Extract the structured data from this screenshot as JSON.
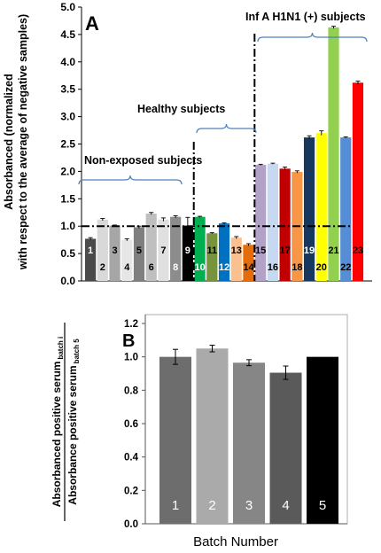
{
  "chart_data": [
    {
      "panel": "A",
      "type": "bar",
      "ylabel_line1": "Absorbanced (normalized",
      "ylabel_line2": "with respect to the average of negative samples)",
      "ylim": [
        0,
        5
      ],
      "yticks": [
        "0.0",
        "0.5",
        "1.0",
        "1.5",
        "2.0",
        "2.5",
        "3.0",
        "3.5",
        "4.0",
        "4.5",
        "5.0"
      ],
      "threshold": 1.0,
      "groups": [
        {
          "label": "Non-exposed subjects",
          "from": 1,
          "to": 9
        },
        {
          "label": "Healthy subjects",
          "from": 10,
          "to": 14
        },
        {
          "label": "Inf A H1N1 (+) subjects",
          "from": 15,
          "to": 23
        }
      ],
      "bars": [
        {
          "n": "1",
          "value": 0.77,
          "err": 0.02,
          "color": "#4a4a4a",
          "label_color": "#ffffff",
          "label_pos": "high"
        },
        {
          "n": "2",
          "value": 1.12,
          "err": 0.02,
          "color": "#d9d9d9",
          "label_color": "#000000",
          "label_pos": "low"
        },
        {
          "n": "3",
          "value": 1.01,
          "err": 0.01,
          "color": "#a6a6a6",
          "label_color": "#000000",
          "label_pos": "high"
        },
        {
          "n": "4",
          "value": 0.75,
          "err": 0.02,
          "color": "#e6e6e6",
          "label_color": "#000000",
          "label_pos": "low"
        },
        {
          "n": "5",
          "value": 0.98,
          "err": 0.02,
          "color": "#7f7f7f",
          "label_color": "#000000",
          "label_pos": "high"
        },
        {
          "n": "6",
          "value": 1.23,
          "err": 0.02,
          "color": "#bfbfbf",
          "label_color": "#000000",
          "label_pos": "low"
        },
        {
          "n": "7",
          "value": 1.12,
          "err": 0.03,
          "color": "#e0e0e0",
          "label_color": "#000000",
          "label_pos": "high"
        },
        {
          "n": "8",
          "value": 1.17,
          "err": 0.02,
          "color": "#8c8c8c",
          "label_color": "#ffffff",
          "label_pos": "low"
        },
        {
          "n": "9",
          "value": 1.01,
          "err": 0.15,
          "color": "#000000",
          "label_color": "#ffffff",
          "label_pos": "high"
        },
        {
          "n": "10",
          "value": 1.17,
          "err": 0.01,
          "color": "#00b050",
          "label_color": "#ffffff",
          "label_pos": "low"
        },
        {
          "n": "11",
          "value": 0.87,
          "err": 0.01,
          "color": "#77933c",
          "label_color": "#000000",
          "label_pos": "high"
        },
        {
          "n": "12",
          "value": 1.05,
          "err": 0.01,
          "color": "#0070c0",
          "label_color": "#ffffff",
          "label_pos": "low"
        },
        {
          "n": "13",
          "value": 0.79,
          "err": 0.02,
          "color": "#fac090",
          "label_color": "#000000",
          "label_pos": "high"
        },
        {
          "n": "14",
          "value": 0.66,
          "err": 0.02,
          "color": "#e46c0a",
          "label_color": "#000000",
          "label_pos": "low"
        },
        {
          "n": "15",
          "value": 2.12,
          "err": 0.01,
          "color": "#b3a2c7",
          "label_color": "#000000",
          "label_pos": "high"
        },
        {
          "n": "16",
          "value": 2.14,
          "err": 0.01,
          "color": "#c6d9f1",
          "label_color": "#000000",
          "label_pos": "low"
        },
        {
          "n": "17",
          "value": 2.05,
          "err": 0.03,
          "color": "#c00000",
          "label_color": "#000000",
          "label_pos": "high"
        },
        {
          "n": "18",
          "value": 1.99,
          "err": 0.02,
          "color": "#f79646",
          "label_color": "#000000",
          "label_pos": "low"
        },
        {
          "n": "19",
          "value": 2.62,
          "err": 0.03,
          "color": "#17375e",
          "label_color": "#ffffff",
          "label_pos": "high"
        },
        {
          "n": "20",
          "value": 2.7,
          "err": 0.04,
          "color": "#ffff00",
          "label_color": "#000000",
          "label_pos": "low"
        },
        {
          "n": "21",
          "value": 4.63,
          "err": 0.02,
          "color": "#92d050",
          "label_color": "#000000",
          "label_pos": "high"
        },
        {
          "n": "22",
          "value": 2.62,
          "err": 0.01,
          "color": "#558ed5",
          "label_color": "#000000",
          "label_pos": "low"
        },
        {
          "n": "23",
          "value": 3.62,
          "err": 0.03,
          "color": "#ff0000",
          "label_color": "#000000",
          "label_pos": "high"
        }
      ]
    },
    {
      "panel": "B",
      "type": "bar",
      "ylabel_numerator": "Absorbanced positive serum",
      "ylabel_numerator_sub": "batch i",
      "ylabel_denominator": "Absorbance positive serum",
      "ylabel_denominator_sub": "batch 5",
      "xlabel": "Batch Number",
      "ylim": [
        0,
        1.2
      ],
      "yticks": [
        "0.0",
        "0.2",
        "0.4",
        "0.6",
        "0.8",
        "1.0",
        "1.2"
      ],
      "bars": [
        {
          "n": "1",
          "value": 1.0,
          "err": 0.045,
          "color": "#6d6d6d"
        },
        {
          "n": "2",
          "value": 1.05,
          "err": 0.02,
          "color": "#aaaaaa"
        },
        {
          "n": "3",
          "value": 0.965,
          "err": 0.018,
          "color": "#868686"
        },
        {
          "n": "4",
          "value": 0.905,
          "err": 0.04,
          "color": "#5a5a5a"
        },
        {
          "n": "5",
          "value": 1.0,
          "err": 0.0,
          "color": "#000000"
        }
      ]
    }
  ]
}
